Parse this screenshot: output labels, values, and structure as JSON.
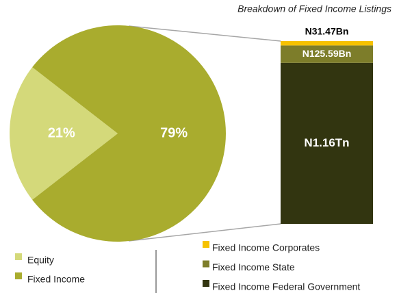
{
  "chart_data": [
    {
      "type": "pie",
      "categories": [
        "Equity",
        "Fixed Income"
      ],
      "values": [
        21,
        79
      ],
      "value_labels": [
        "21%",
        "79%"
      ],
      "colors": [
        "#d4d97a",
        "#a9ac2e"
      ]
    },
    {
      "type": "bar",
      "title": "Breakdown of Fixed Income Listings",
      "series": [
        {
          "name": "Fixed Income Corporates",
          "color": "#f6c200",
          "values": [
            31.47
          ],
          "value_labels": [
            "N31.47Bn"
          ]
        },
        {
          "name": "Fixed Income State",
          "color": "#7d7d2a",
          "values": [
            125.59
          ],
          "value_labels": [
            "N125.59Bn"
          ]
        },
        {
          "name": "Fixed Income Federal Government",
          "color": "#323510",
          "values": [
            1160
          ],
          "value_labels": [
            "N1.16Tn"
          ]
        }
      ]
    }
  ]
}
